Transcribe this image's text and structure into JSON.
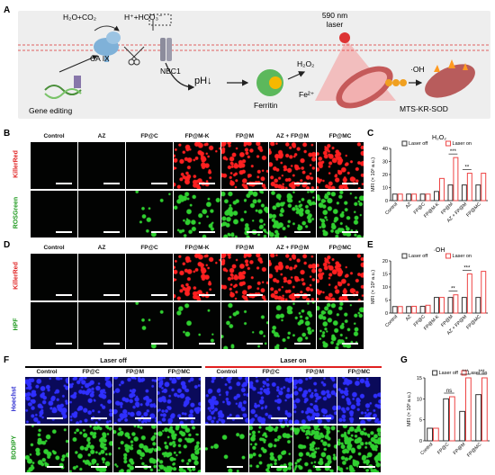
{
  "panels": {
    "A": "A",
    "B": "B",
    "C": "C",
    "D": "D",
    "E": "E",
    "F": "F",
    "G": "G"
  },
  "schematic": {
    "h2o_co2": "H₂O+CO₂",
    "h_hco3": "H⁺+HCO₃⁻",
    "ca9": "CA IX",
    "nbc1": "NBC1",
    "laser": "590 nm\nlaser",
    "ph": "pH↓",
    "h2o2": "H₂O₂",
    "fe2": "Fe²⁺",
    "oh": "·OH",
    "ferritin": "Ferritin",
    "gene_editing": "Gene editing",
    "mts": "MTS-KR-SOD"
  },
  "micro_cols_bd": [
    "Control",
    "AZ",
    "FP@C",
    "FP@M-K",
    "FP@M",
    "AZ + FP@M",
    "FP@MC"
  ],
  "row_labels": {
    "b1": "KillerRed",
    "b2": "ROSGreen",
    "d1": "KillerRed",
    "d2": "HPF",
    "f1": "Hoechst",
    "f2": "BODIPY"
  },
  "f_groups": {
    "off": "Laser off",
    "on": "Laser on"
  },
  "micro_cols_f": [
    "Control",
    "FP@C",
    "FP@M",
    "FP@MC",
    "Control",
    "FP@C",
    "FP@M",
    "FP@MC"
  ],
  "chart_data": [
    {
      "panel": "C",
      "type": "bar",
      "title": "H₂O₂",
      "categories": [
        "Control",
        "AZ",
        "FP@C",
        "FP@M-K",
        "FP@M",
        "AZ + FP@M",
        "FP@MC"
      ],
      "series": [
        {
          "name": "Laser off",
          "values": [
            5,
            5,
            5,
            7,
            12,
            12,
            12
          ],
          "color": "#333333"
        },
        {
          "name": "Laser on",
          "values": [
            5,
            5,
            5,
            17,
            33,
            21,
            21
          ],
          "color": "#ee4444"
        }
      ],
      "ylabel": "MFI (× 10³ a.u.)",
      "ylim": [
        0,
        40
      ],
      "yticks": [
        0,
        10,
        20,
        30,
        40
      ],
      "sig": [
        [
          "***",
          4
        ],
        [
          "**",
          5
        ]
      ]
    },
    {
      "panel": "E",
      "type": "bar",
      "title": "·OH",
      "categories": [
        "Control",
        "AZ",
        "FP@C",
        "FP@M-K",
        "FP@M",
        "AZ + FP@M",
        "FP@MC"
      ],
      "series": [
        {
          "name": "Laser off",
          "values": [
            2.5,
            2.5,
            2.6,
            6,
            6,
            6,
            6
          ],
          "color": "#333333"
        },
        {
          "name": "Laser on",
          "values": [
            2.5,
            2.6,
            3,
            6,
            7,
            15,
            16
          ],
          "color": "#ee4444"
        }
      ],
      "ylabel": "MFI (× 10³ a.u.)",
      "ylim": [
        0,
        20
      ],
      "yticks": [
        0,
        5,
        10,
        15,
        20
      ],
      "sig": [
        [
          "**",
          4
        ],
        [
          "***",
          5
        ]
      ]
    },
    {
      "panel": "G",
      "type": "bar",
      "title": "",
      "categories": [
        "Control",
        "FP@C",
        "FP@M",
        "FP@MC"
      ],
      "series": [
        {
          "name": "Laser off",
          "values": [
            3,
            10,
            7,
            11
          ],
          "color": "#333333"
        },
        {
          "name": "Laser on",
          "values": [
            3,
            10.5,
            15,
            15
          ],
          "color": "#ee4444"
        }
      ],
      "ylabel": "MFI (× 10³ a.u.)",
      "ylim": [
        0,
        15
      ],
      "yticks": [
        0,
        5,
        10,
        15
      ],
      "sig": [
        [
          "ns",
          1
        ],
        [
          "***",
          2
        ],
        [
          "***",
          3
        ]
      ]
    }
  ]
}
